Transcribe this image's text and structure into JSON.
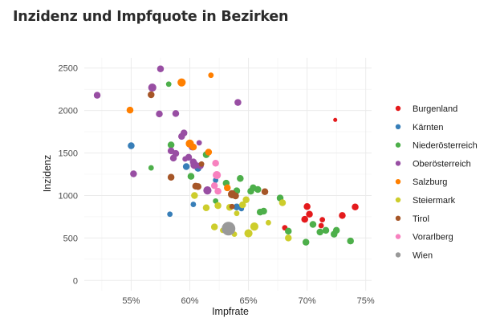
{
  "chart_data": {
    "type": "scatter",
    "title": "Inzidenz und Impfquote in Bezirken",
    "xlabel": "Impfrate",
    "ylabel": "Inzidenz",
    "xlim": [
      0.51,
      0.755
    ],
    "ylim": [
      -120,
      2620
    ],
    "xticks": [
      0.55,
      0.6,
      0.65,
      0.7,
      0.75
    ],
    "xtick_labels": [
      "55%",
      "60%",
      "65%",
      "70%",
      "75%"
    ],
    "yticks": [
      0,
      500,
      1000,
      1500,
      2000,
      2500
    ],
    "ytick_labels": [
      "0",
      "500",
      "1000",
      "1500",
      "2000",
      "2500"
    ],
    "grid": true,
    "legend_position": "right",
    "series": [
      {
        "name": "Burgenland",
        "color": "#E41A1C",
        "points": [
          {
            "x": 0.724,
            "y": 1890,
            "s": 1
          },
          {
            "x": 0.698,
            "y": 720,
            "s": 3
          },
          {
            "x": 0.7,
            "y": 870,
            "s": 3
          },
          {
            "x": 0.702,
            "y": 780,
            "s": 3
          },
          {
            "x": 0.713,
            "y": 715,
            "s": 2
          },
          {
            "x": 0.712,
            "y": 645,
            "s": 2
          },
          {
            "x": 0.73,
            "y": 765,
            "s": 3
          },
          {
            "x": 0.741,
            "y": 865,
            "s": 3
          },
          {
            "x": 0.681,
            "y": 620,
            "s": 2
          }
        ]
      },
      {
        "name": "Kärnten",
        "color": "#377EB8",
        "points": [
          {
            "x": 0.55,
            "y": 1585,
            "s": 3
          },
          {
            "x": 0.583,
            "y": 780,
            "s": 2
          },
          {
            "x": 0.597,
            "y": 1340,
            "s": 3
          },
          {
            "x": 0.603,
            "y": 895,
            "s": 2
          },
          {
            "x": 0.607,
            "y": 1320,
            "s": 3
          },
          {
            "x": 0.64,
            "y": 865,
            "s": 3
          },
          {
            "x": 0.644,
            "y": 845,
            "s": 2
          },
          {
            "x": 0.622,
            "y": 1180,
            "s": 2
          }
        ]
      },
      {
        "name": "Niederösterreich",
        "color": "#4DAF4A",
        "points": [
          {
            "x": 0.582,
            "y": 2310,
            "s": 2
          },
          {
            "x": 0.567,
            "y": 1325,
            "s": 2
          },
          {
            "x": 0.584,
            "y": 1595,
            "s": 3
          },
          {
            "x": 0.601,
            "y": 1225,
            "s": 3
          },
          {
            "x": 0.614,
            "y": 1480,
            "s": 3
          },
          {
            "x": 0.631,
            "y": 1145,
            "s": 3
          },
          {
            "x": 0.64,
            "y": 1055,
            "s": 3
          },
          {
            "x": 0.643,
            "y": 1200,
            "s": 3
          },
          {
            "x": 0.652,
            "y": 1050,
            "s": 3
          },
          {
            "x": 0.654,
            "y": 1090,
            "s": 3
          },
          {
            "x": 0.658,
            "y": 1070,
            "s": 3
          },
          {
            "x": 0.66,
            "y": 805,
            "s": 3
          },
          {
            "x": 0.663,
            "y": 815,
            "s": 3
          },
          {
            "x": 0.677,
            "y": 970,
            "s": 3
          },
          {
            "x": 0.684,
            "y": 580,
            "s": 3
          },
          {
            "x": 0.699,
            "y": 450,
            "s": 3
          },
          {
            "x": 0.705,
            "y": 660,
            "s": 3
          },
          {
            "x": 0.711,
            "y": 570,
            "s": 3
          },
          {
            "x": 0.716,
            "y": 590,
            "s": 3
          },
          {
            "x": 0.723,
            "y": 545,
            "s": 3
          },
          {
            "x": 0.725,
            "y": 590,
            "s": 3
          },
          {
            "x": 0.737,
            "y": 465,
            "s": 3
          },
          {
            "x": 0.636,
            "y": 1000,
            "s": 2
          },
          {
            "x": 0.622,
            "y": 935,
            "s": 2
          }
        ]
      },
      {
        "name": "Oberösterreich",
        "color": "#984EA3",
        "points": [
          {
            "x": 0.521,
            "y": 2180,
            "s": 3
          },
          {
            "x": 0.552,
            "y": 1255,
            "s": 3
          },
          {
            "x": 0.568,
            "y": 2270,
            "s": 4
          },
          {
            "x": 0.575,
            "y": 2490,
            "s": 3
          },
          {
            "x": 0.574,
            "y": 1960,
            "s": 3
          },
          {
            "x": 0.588,
            "y": 1965,
            "s": 3
          },
          {
            "x": 0.584,
            "y": 1525,
            "s": 3
          },
          {
            "x": 0.588,
            "y": 1495,
            "s": 3
          },
          {
            "x": 0.586,
            "y": 1440,
            "s": 3
          },
          {
            "x": 0.593,
            "y": 1695,
            "s": 3
          },
          {
            "x": 0.595,
            "y": 1735,
            "s": 3
          },
          {
            "x": 0.599,
            "y": 1450,
            "s": 3
          },
          {
            "x": 0.602,
            "y": 1570,
            "s": 3
          },
          {
            "x": 0.603,
            "y": 1395,
            "s": 3
          },
          {
            "x": 0.604,
            "y": 1360,
            "s": 4
          },
          {
            "x": 0.608,
            "y": 1620,
            "s": 2
          },
          {
            "x": 0.615,
            "y": 1060,
            "s": 4
          },
          {
            "x": 0.641,
            "y": 2095,
            "s": 3
          },
          {
            "x": 0.609,
            "y": 1350,
            "s": 3
          },
          {
            "x": 0.596,
            "y": 1430,
            "s": 2
          }
        ]
      },
      {
        "name": "Salzburg",
        "color": "#FF7F00",
        "points": [
          {
            "x": 0.549,
            "y": 2005,
            "s": 3
          },
          {
            "x": 0.593,
            "y": 2330,
            "s": 4
          },
          {
            "x": 0.618,
            "y": 2415,
            "s": 2
          },
          {
            "x": 0.6,
            "y": 1610,
            "s": 4
          },
          {
            "x": 0.603,
            "y": 1570,
            "s": 3
          },
          {
            "x": 0.616,
            "y": 1510,
            "s": 3
          },
          {
            "x": 0.632,
            "y": 1090,
            "s": 3
          }
        ]
      },
      {
        "name": "Steiermark",
        "color": "#CDCD2C",
        "points": [
          {
            "x": 0.604,
            "y": 1000,
            "s": 3
          },
          {
            "x": 0.614,
            "y": 855,
            "s": 3
          },
          {
            "x": 0.621,
            "y": 630,
            "s": 3
          },
          {
            "x": 0.624,
            "y": 880,
            "s": 3
          },
          {
            "x": 0.634,
            "y": 860,
            "s": 3
          },
          {
            "x": 0.638,
            "y": 545,
            "s": 2
          },
          {
            "x": 0.64,
            "y": 790,
            "s": 2
          },
          {
            "x": 0.645,
            "y": 890,
            "s": 3
          },
          {
            "x": 0.648,
            "y": 950,
            "s": 3
          },
          {
            "x": 0.65,
            "y": 555,
            "s": 4
          },
          {
            "x": 0.655,
            "y": 635,
            "s": 4
          },
          {
            "x": 0.667,
            "y": 680,
            "s": 2
          },
          {
            "x": 0.679,
            "y": 915,
            "s": 3
          },
          {
            "x": 0.684,
            "y": 500,
            "s": 3
          },
          {
            "x": 0.628,
            "y": 590,
            "s": 2
          }
        ]
      },
      {
        "name": "Tirol",
        "color": "#A65628",
        "points": [
          {
            "x": 0.567,
            "y": 2185,
            "s": 3
          },
          {
            "x": 0.584,
            "y": 1215,
            "s": 3
          },
          {
            "x": 0.605,
            "y": 1110,
            "s": 3
          },
          {
            "x": 0.607,
            "y": 1105,
            "s": 3
          },
          {
            "x": 0.61,
            "y": 1370,
            "s": 2
          },
          {
            "x": 0.636,
            "y": 1015,
            "s": 4
          },
          {
            "x": 0.639,
            "y": 995,
            "s": 3
          },
          {
            "x": 0.636,
            "y": 870,
            "s": 2
          },
          {
            "x": 0.664,
            "y": 1045,
            "s": 3
          }
        ]
      },
      {
        "name": "Vorarlberg",
        "color": "#F781BF",
        "points": [
          {
            "x": 0.622,
            "y": 1380,
            "s": 3
          },
          {
            "x": 0.621,
            "y": 1115,
            "s": 3
          },
          {
            "x": 0.624,
            "y": 1050,
            "s": 3
          },
          {
            "x": 0.623,
            "y": 1240,
            "s": 4
          }
        ]
      },
      {
        "name": "Wien",
        "color": "#999999",
        "points": [
          {
            "x": 0.633,
            "y": 610,
            "s": 8
          }
        ]
      }
    ]
  }
}
